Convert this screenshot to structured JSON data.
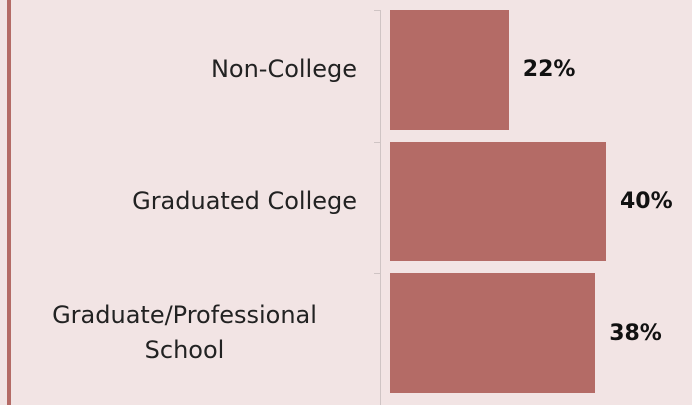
{
  "chart_data": {
    "type": "barh",
    "categories": [
      "Non-College",
      "Graduated College",
      "Graduate/Professional School"
    ],
    "values": [
      22,
      40,
      38
    ],
    "value_labels": [
      "22%",
      "40%",
      "38%"
    ],
    "color": "#b46b66"
  }
}
